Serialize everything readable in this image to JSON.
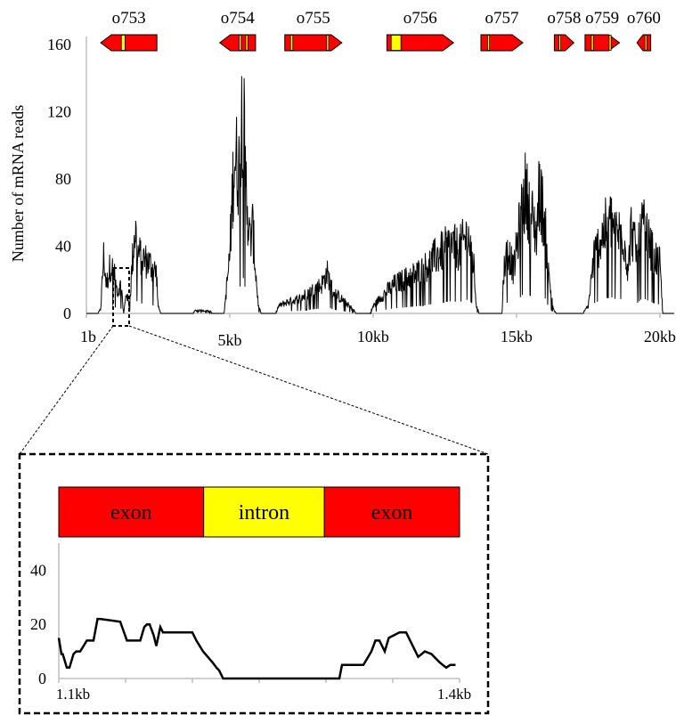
{
  "colors": {
    "exon": "#ff0000",
    "intron": "#ffff00",
    "trace": "#000000",
    "axis": "#bfbfbf",
    "text": "#000000"
  },
  "chart_data": [
    {
      "type": "line",
      "title": "",
      "xlabel": "",
      "ylabel": "Number of mRNA reads",
      "ylim": [
        0,
        160
      ],
      "xlim": [
        1,
        20500
      ],
      "y_ticks": [
        "0",
        "40",
        "80",
        "120",
        "160"
      ],
      "x_ticks": [
        {
          "label": "1b",
          "value": 1
        },
        {
          "label": "5kb",
          "value": 5000
        },
        {
          "label": "10kb",
          "value": 10000
        },
        {
          "label": "15kb",
          "value": 15000
        },
        {
          "label": "20kb",
          "value": 20000
        }
      ],
      "genes": [
        {
          "name": "o753",
          "start": 500,
          "end": 2460,
          "strand": "-",
          "introns": [
            {
              "start": 1220,
              "end": 1350
            }
          ]
        },
        {
          "name": "o754",
          "start": 4650,
          "end": 5900,
          "strand": "-",
          "introns": [
            {
              "start": 5330,
              "end": 5400
            },
            {
              "start": 5560,
              "end": 5630
            }
          ]
        },
        {
          "name": "o755",
          "start": 6920,
          "end": 8910,
          "strand": "+",
          "introns": [
            {
              "start": 7120,
              "end": 7200
            },
            {
              "start": 8380,
              "end": 8450
            }
          ]
        },
        {
          "name": "o756",
          "start": 10480,
          "end": 12800,
          "strand": "+",
          "introns": [
            {
              "start": 10630,
              "end": 10970
            }
          ]
        },
        {
          "name": "o757",
          "start": 13760,
          "end": 15220,
          "strand": "+",
          "introns": [
            {
              "start": 13990,
              "end": 14060
            }
          ]
        },
        {
          "name": "o758",
          "start": 16320,
          "end": 17000,
          "strand": "+",
          "introns": [
            {
              "start": 16480,
              "end": 16540
            }
          ]
        },
        {
          "name": "o759",
          "start": 17390,
          "end": 18590,
          "strand": "+",
          "introns": [
            {
              "start": 17610,
              "end": 17680
            },
            {
              "start": 18230,
              "end": 18300
            }
          ]
        },
        {
          "name": "o760",
          "start": 19200,
          "end": 19680,
          "strand": "-",
          "introns": [
            {
              "start": 19480,
              "end": 19540
            }
          ]
        }
      ],
      "coverage_profile": [
        [
          0,
          0
        ],
        [
          400,
          0
        ],
        [
          500,
          3
        ],
        [
          600,
          40
        ],
        [
          700,
          20
        ],
        [
          850,
          35
        ],
        [
          1000,
          25
        ],
        [
          1100,
          10
        ],
        [
          1200,
          20
        ],
        [
          1300,
          0
        ],
        [
          1400,
          15
        ],
        [
          1500,
          4
        ],
        [
          1600,
          35
        ],
        [
          1700,
          60
        ],
        [
          1800,
          42
        ],
        [
          2000,
          38
        ],
        [
          2200,
          35
        ],
        [
          2450,
          28
        ],
        [
          2500,
          5
        ],
        [
          2600,
          0
        ],
        [
          3700,
          0
        ],
        [
          3800,
          2
        ],
        [
          4300,
          2
        ],
        [
          4400,
          0
        ],
        [
          4800,
          0
        ],
        [
          5000,
          40
        ],
        [
          5150,
          110
        ],
        [
          5350,
          100
        ],
        [
          5450,
          155
        ],
        [
          5550,
          95
        ],
        [
          5700,
          50
        ],
        [
          5800,
          60
        ],
        [
          5900,
          30
        ],
        [
          6000,
          5
        ],
        [
          6100,
          0
        ],
        [
          6600,
          0
        ],
        [
          6700,
          5
        ],
        [
          7000,
          8
        ],
        [
          7400,
          10
        ],
        [
          7800,
          15
        ],
        [
          8200,
          20
        ],
        [
          8400,
          28
        ],
        [
          8600,
          15
        ],
        [
          8900,
          10
        ],
        [
          9300,
          3
        ],
        [
          9400,
          0
        ],
        [
          9900,
          0
        ],
        [
          10000,
          5
        ],
        [
          10300,
          12
        ],
        [
          10700,
          20
        ],
        [
          11200,
          25
        ],
        [
          11700,
          30
        ],
        [
          12200,
          40
        ],
        [
          12700,
          48
        ],
        [
          13000,
          45
        ],
        [
          13300,
          55
        ],
        [
          13500,
          35
        ],
        [
          13600,
          5
        ],
        [
          13700,
          0
        ],
        [
          14500,
          0
        ],
        [
          14550,
          30
        ],
        [
          14700,
          45
        ],
        [
          14900,
          30
        ],
        [
          15100,
          60
        ],
        [
          15300,
          85
        ],
        [
          15500,
          70
        ],
        [
          15700,
          55
        ],
        [
          15800,
          88
        ],
        [
          16000,
          60
        ],
        [
          16100,
          30
        ],
        [
          16300,
          2
        ],
        [
          16400,
          0
        ],
        [
          17300,
          0
        ],
        [
          17500,
          5
        ],
        [
          17700,
          40
        ],
        [
          17900,
          50
        ],
        [
          18100,
          60
        ],
        [
          18300,
          65
        ],
        [
          18500,
          55
        ],
        [
          18700,
          58
        ],
        [
          18900,
          30
        ],
        [
          19000,
          60
        ],
        [
          19200,
          40
        ],
        [
          19400,
          62
        ],
        [
          19600,
          50
        ],
        [
          19800,
          40
        ],
        [
          20000,
          35
        ],
        [
          20100,
          0
        ],
        [
          20500,
          0
        ]
      ]
    },
    {
      "type": "line",
      "title": "",
      "xlabel": "",
      "ylabel": "",
      "ylim": [
        0,
        50
      ],
      "xlim": [
        1.1,
        1.4
      ],
      "y_ticks": [
        "0",
        "20",
        "40"
      ],
      "x_ticks": [
        {
          "label": "1.1kb",
          "value": 1.1
        },
        {
          "label": "1.4kb",
          "value": 1.4
        }
      ],
      "segments": [
        {
          "label": "exon",
          "start": 1.1,
          "end": 1.25,
          "color": "#ff0000"
        },
        {
          "label": "intron",
          "start": 1.25,
          "end": 1.375,
          "color": "#ffff00"
        },
        {
          "label": "exon",
          "start": 1.375,
          "end": 1.515,
          "color": "#ff0000"
        }
      ],
      "x": [
        1.1,
        1.102,
        1.103,
        1.106,
        1.108,
        1.111,
        1.113,
        1.116,
        1.121,
        1.126,
        1.129,
        1.131,
        1.146,
        1.151,
        1.161,
        1.164,
        1.166,
        1.168,
        1.171,
        1.173,
        1.176,
        1.178,
        1.186,
        1.195,
        1.2,
        1.203,
        1.208,
        1.215,
        1.218,
        1.22,
        1.223,
        1.225,
        1.228,
        1.31,
        1.312,
        1.322,
        1.328,
        1.334,
        1.337,
        1.34,
        1.344,
        1.347,
        1.355,
        1.36,
        1.366,
        1.369,
        1.374,
        1.379,
        1.385,
        1.39,
        1.393,
        1.397
      ],
      "y": [
        15,
        9,
        9,
        4,
        4,
        9,
        10,
        10,
        14,
        14,
        22,
        22,
        21,
        14,
        14,
        19,
        20,
        20,
        16,
        12,
        19,
        17,
        17,
        17,
        17,
        14,
        10,
        6,
        4,
        3,
        0,
        0,
        0,
        0,
        5,
        5,
        5,
        10,
        14,
        14,
        10,
        15,
        17,
        17,
        11,
        8,
        10,
        9,
        6,
        4,
        5,
        5
      ]
    }
  ]
}
